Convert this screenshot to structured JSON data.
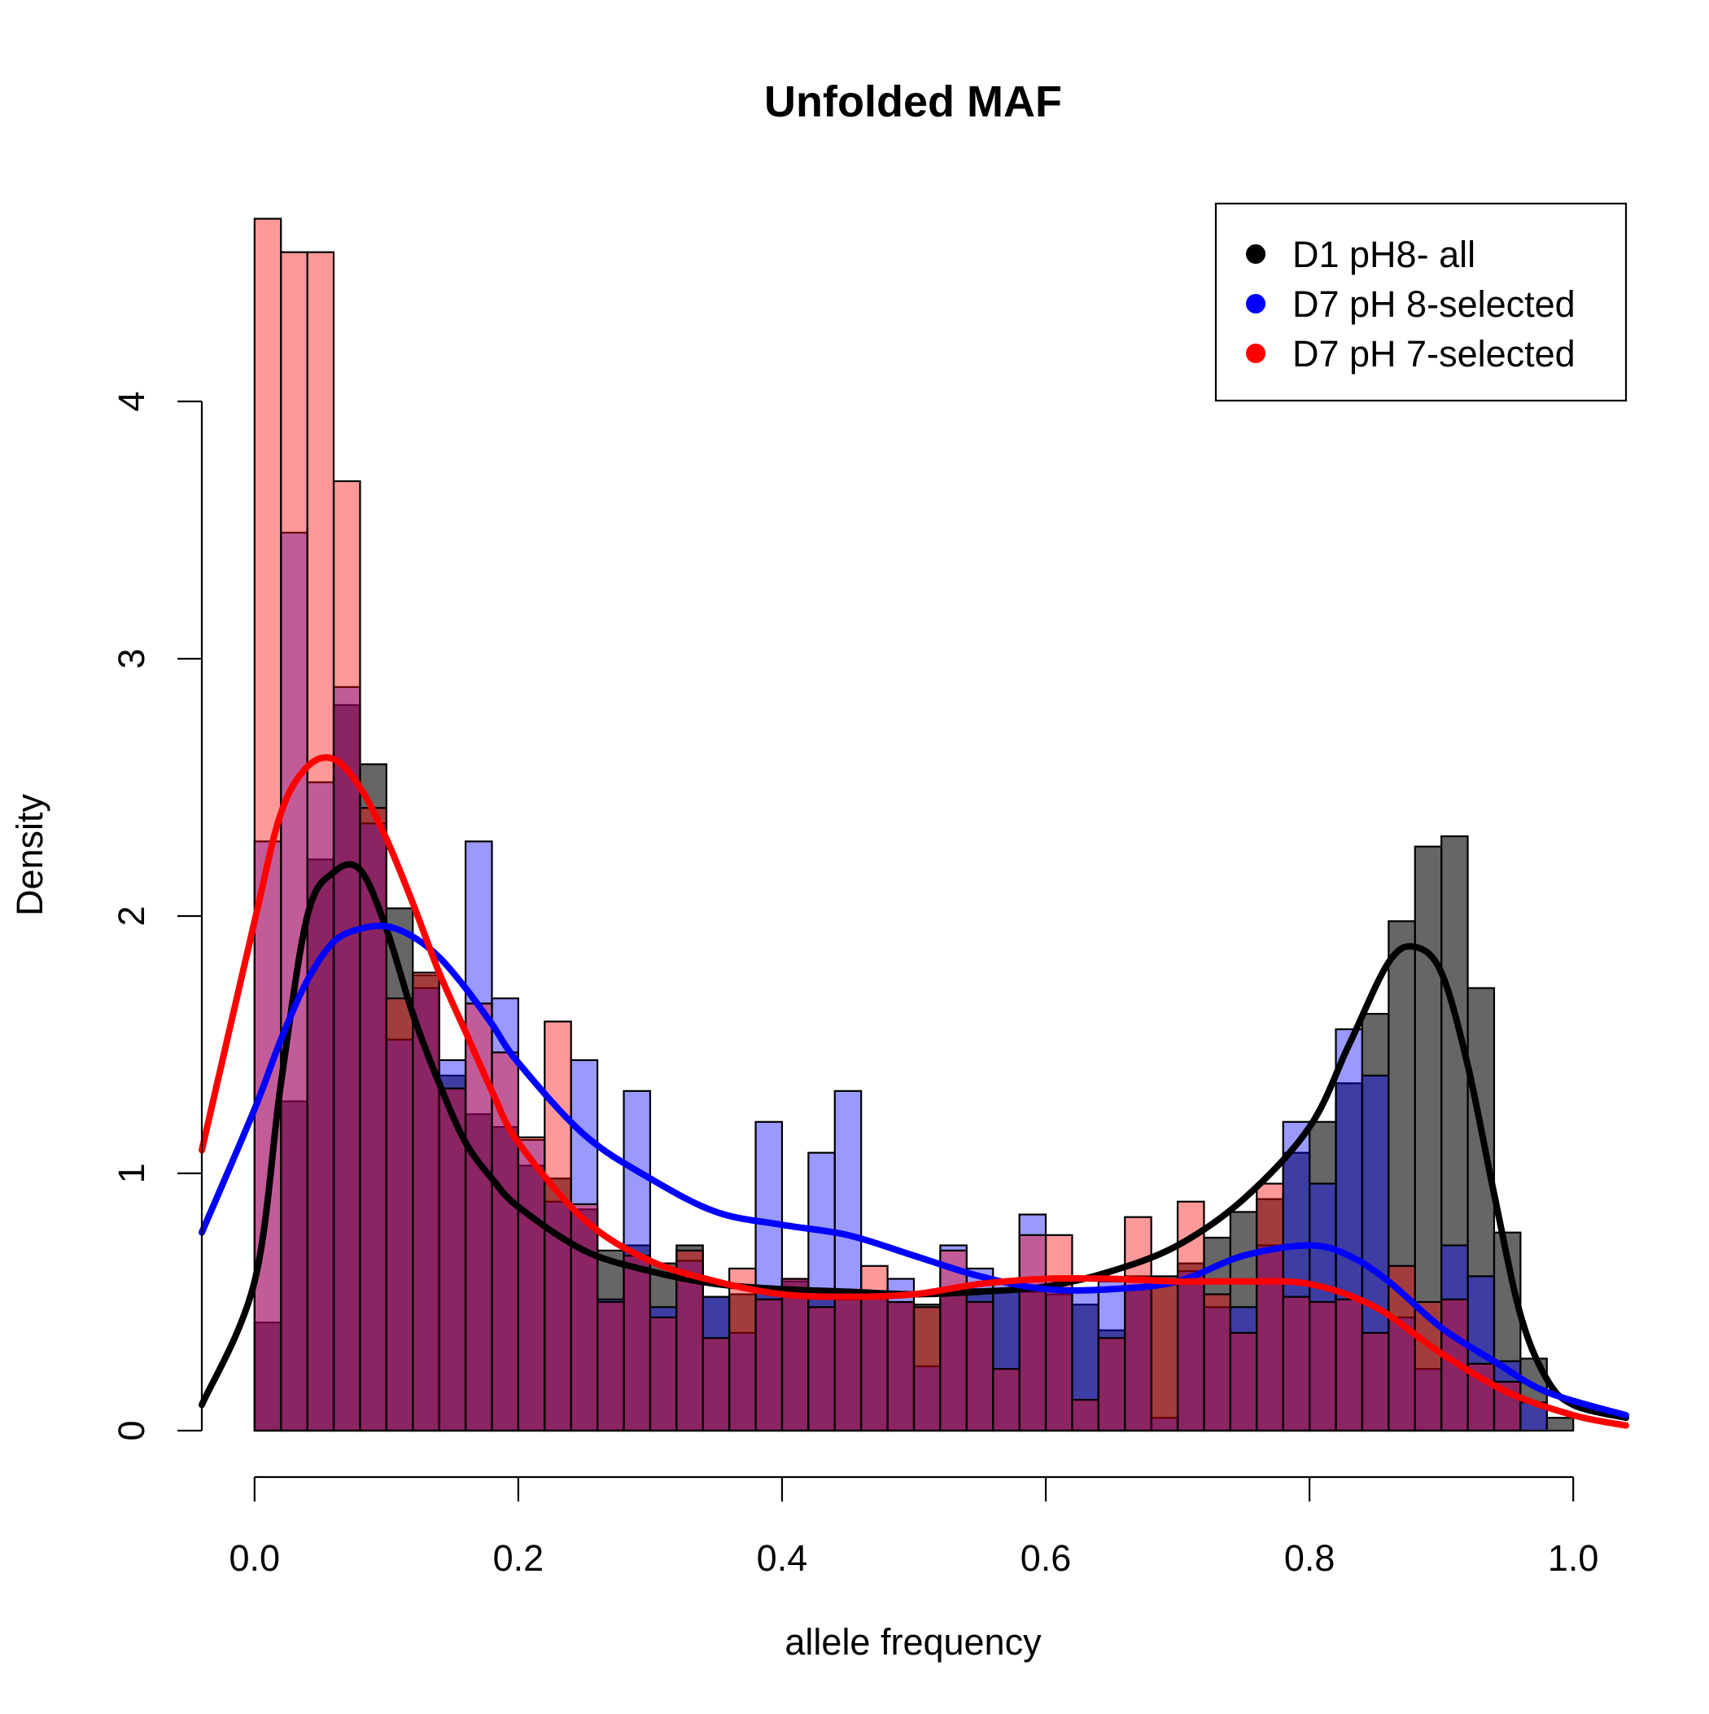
{
  "chart_data": {
    "type": "bar",
    "title": "Unfolded MAF",
    "xlabel": "allele frequency",
    "ylabel": "Density",
    "xlim": [
      -0.04,
      1.04
    ],
    "ylim": [
      0,
      4.7
    ],
    "xticks": [
      {
        "value": 0.0,
        "label": "0.0"
      },
      {
        "value": 0.2,
        "label": "0.2"
      },
      {
        "value": 0.4,
        "label": "0.4"
      },
      {
        "value": 0.6,
        "label": "0.6"
      },
      {
        "value": 0.8,
        "label": "0.8"
      },
      {
        "value": 1.0,
        "label": "1.0"
      }
    ],
    "yticks": [
      {
        "value": 0,
        "label": "0"
      },
      {
        "value": 1,
        "label": "1"
      },
      {
        "value": 2,
        "label": "2"
      },
      {
        "value": 3,
        "label": "3"
      },
      {
        "value": 4,
        "label": "4"
      }
    ],
    "bin_width": 0.02,
    "bin_starts": [
      0.0,
      0.02,
      0.04,
      0.06,
      0.08,
      0.1,
      0.12,
      0.14,
      0.16,
      0.18,
      0.2,
      0.22,
      0.24,
      0.26,
      0.28,
      0.3,
      0.32,
      0.34,
      0.36,
      0.38,
      0.4,
      0.42,
      0.44,
      0.46,
      0.48,
      0.5,
      0.52,
      0.54,
      0.56,
      0.58,
      0.6,
      0.62,
      0.64,
      0.66,
      0.68,
      0.7,
      0.72,
      0.74,
      0.76,
      0.78,
      0.8,
      0.82,
      0.84,
      0.86,
      0.88,
      0.9,
      0.92,
      0.94,
      0.96,
      0.98
    ],
    "legend_position": "top-right",
    "grid": false,
    "series": [
      {
        "name": "D1 pH8- all",
        "color": "#000000",
        "bar_fill": "rgba(0,0,0,0.6)",
        "values": [
          0.42,
          1.28,
          2.22,
          2.82,
          2.59,
          2.03,
          1.77,
          1.38,
          1.23,
          1.18,
          1.03,
          0.98,
          0.86,
          0.7,
          0.72,
          0.65,
          0.72,
          0.52,
          0.53,
          0.55,
          0.58,
          0.53,
          0.53,
          0.53,
          0.5,
          0.49,
          0.53,
          0.55,
          0.55,
          0.54,
          0.53,
          0.49,
          0.39,
          0.56,
          0.6,
          0.65,
          0.75,
          0.85,
          0.9,
          1.08,
          1.2,
          1.35,
          1.62,
          1.98,
          2.27,
          2.31,
          1.72,
          0.77,
          0.28,
          0.05
        ],
        "density_x": [
          -0.04,
          0.0,
          0.02,
          0.04,
          0.06,
          0.08,
          0.1,
          0.12,
          0.14,
          0.16,
          0.18,
          0.2,
          0.25,
          0.3,
          0.35,
          0.4,
          0.45,
          0.5,
          0.55,
          0.6,
          0.65,
          0.7,
          0.75,
          0.8,
          0.83,
          0.86,
          0.88,
          0.9,
          0.92,
          0.94,
          0.96,
          0.98,
          1.0,
          1.04
        ],
        "density_y": [
          0.1,
          0.58,
          1.35,
          2.0,
          2.17,
          2.18,
          1.95,
          1.62,
          1.35,
          1.12,
          0.98,
          0.87,
          0.7,
          0.62,
          0.57,
          0.55,
          0.54,
          0.53,
          0.54,
          0.56,
          0.62,
          0.72,
          0.9,
          1.18,
          1.5,
          1.82,
          1.88,
          1.78,
          1.42,
          0.92,
          0.45,
          0.2,
          0.1,
          0.05
        ]
      },
      {
        "name": "D7 pH 8-selected",
        "color": "#0000ff",
        "bar_fill": "rgba(0,0,255,0.4)",
        "values": [
          2.29,
          3.49,
          2.52,
          2.89,
          2.36,
          1.52,
          1.72,
          1.44,
          2.29,
          1.68,
          1.13,
          0.89,
          1.44,
          0.51,
          1.32,
          0.48,
          0.66,
          0.52,
          0.38,
          1.2,
          0.59,
          1.08,
          1.32,
          0.52,
          0.59,
          0.25,
          0.72,
          0.63,
          0.58,
          0.84,
          0.55,
          0.55,
          0.58,
          0.6,
          0.05,
          0.62,
          0.48,
          0.48,
          0.72,
          1.2,
          0.96,
          1.56,
          1.38,
          0.44,
          0.24,
          0.72,
          0.6,
          0.27,
          0.11,
          0.0
        ],
        "density_x": [
          -0.04,
          0.0,
          0.02,
          0.04,
          0.06,
          0.08,
          0.1,
          0.12,
          0.14,
          0.16,
          0.18,
          0.2,
          0.25,
          0.3,
          0.35,
          0.4,
          0.45,
          0.5,
          0.55,
          0.6,
          0.65,
          0.7,
          0.75,
          0.8,
          0.83,
          0.86,
          0.9,
          0.94,
          0.98,
          1.04
        ],
        "density_y": [
          0.77,
          1.25,
          1.52,
          1.75,
          1.9,
          1.95,
          1.96,
          1.92,
          1.84,
          1.72,
          1.58,
          1.43,
          1.15,
          0.98,
          0.85,
          0.8,
          0.76,
          0.68,
          0.6,
          0.55,
          0.55,
          0.58,
          0.68,
          0.72,
          0.68,
          0.58,
          0.4,
          0.27,
          0.15,
          0.06
        ]
      },
      {
        "name": "D7 pH 7-selected",
        "color": "#ff0000",
        "bar_fill": "rgba(255,0,0,0.4)",
        "values": [
          4.71,
          4.58,
          4.58,
          3.69,
          2.42,
          1.68,
          1.78,
          1.33,
          1.66,
          1.47,
          1.14,
          1.59,
          0.88,
          0.5,
          0.68,
          0.44,
          0.7,
          0.36,
          0.63,
          0.51,
          0.59,
          0.48,
          0.51,
          0.64,
          0.5,
          0.48,
          0.7,
          0.5,
          0.24,
          0.76,
          0.76,
          0.12,
          0.36,
          0.83,
          0.58,
          0.89,
          0.53,
          0.38,
          0.96,
          0.52,
          0.5,
          0.51,
          0.38,
          0.64,
          0.5,
          0.51,
          0.26,
          0.19,
          0.0,
          0.0
        ],
        "density_x": [
          -0.04,
          0.0,
          0.02,
          0.04,
          0.06,
          0.08,
          0.1,
          0.12,
          0.14,
          0.16,
          0.18,
          0.2,
          0.25,
          0.3,
          0.35,
          0.4,
          0.45,
          0.5,
          0.55,
          0.6,
          0.65,
          0.7,
          0.75,
          0.8,
          0.85,
          0.9,
          0.95,
          1.0,
          1.04
        ],
        "density_y": [
          1.09,
          1.98,
          2.4,
          2.58,
          2.61,
          2.5,
          2.3,
          2.05,
          1.78,
          1.55,
          1.32,
          1.12,
          0.82,
          0.66,
          0.58,
          0.53,
          0.52,
          0.53,
          0.57,
          0.59,
          0.59,
          0.58,
          0.58,
          0.57,
          0.48,
          0.3,
          0.15,
          0.06,
          0.02
        ]
      }
    ]
  }
}
